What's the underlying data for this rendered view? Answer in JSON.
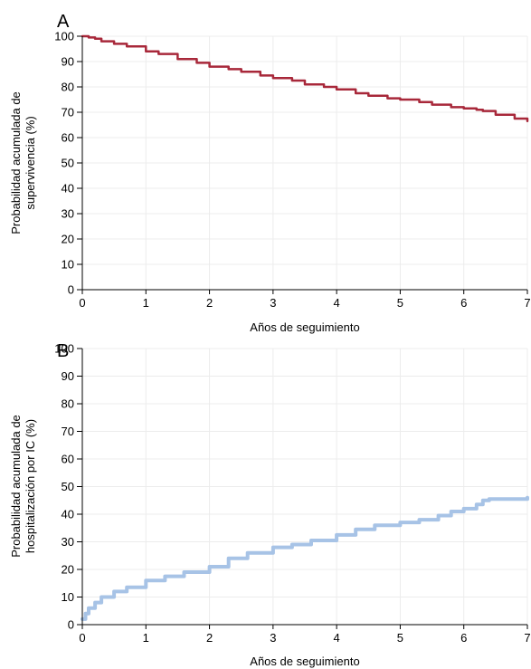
{
  "chart_data": [
    {
      "type": "line",
      "panel_label": "A",
      "xlabel": "Años de seguimiento",
      "ylabel_lines": [
        "Probabilidad acumulada de",
        "supervivencia (%)"
      ],
      "xlim": [
        0,
        7
      ],
      "ylim": [
        0,
        100
      ],
      "xticks": [
        0,
        1,
        2,
        3,
        4,
        5,
        6,
        7
      ],
      "yticks": [
        0,
        10,
        20,
        30,
        40,
        50,
        60,
        70,
        80,
        90,
        100
      ],
      "grid": true,
      "series": [
        {
          "color": "#a8283a",
          "x": [
            0,
            0.1,
            0.2,
            0.3,
            0.5,
            0.7,
            1.0,
            1.2,
            1.5,
            1.8,
            2.0,
            2.3,
            2.5,
            2.8,
            3.0,
            3.3,
            3.5,
            3.8,
            4.0,
            4.3,
            4.5,
            4.8,
            5.0,
            5.3,
            5.5,
            5.8,
            6.0,
            6.2,
            6.3,
            6.5,
            6.8,
            7.0
          ],
          "y": [
            100,
            99.5,
            99,
            98,
            97,
            96,
            94,
            93,
            91,
            89.5,
            88,
            87,
            86,
            84.5,
            83.5,
            82.5,
            81,
            80,
            79,
            77.5,
            76.5,
            75.5,
            75,
            74,
            73,
            72,
            71.5,
            71,
            70.5,
            69,
            67.5,
            66.5
          ]
        }
      ]
    },
    {
      "type": "line",
      "panel_label": "B",
      "xlabel": "Años de seguimiento",
      "ylabel_lines": [
        "Probabilidad acumulada de",
        "hospitalización por IC (%)"
      ],
      "xlim": [
        0,
        7
      ],
      "ylim": [
        0,
        100
      ],
      "xticks": [
        0,
        1,
        2,
        3,
        4,
        5,
        6,
        7
      ],
      "yticks": [
        0,
        10,
        20,
        30,
        40,
        50,
        60,
        70,
        80,
        90,
        100
      ],
      "grid": true,
      "series": [
        {
          "color": "#a7c3e6",
          "x": [
            0,
            0.05,
            0.1,
            0.2,
            0.3,
            0.5,
            0.7,
            1.0,
            1.3,
            1.6,
            2.0,
            2.3,
            2.6,
            3.0,
            3.3,
            3.6,
            4.0,
            4.3,
            4.6,
            5.0,
            5.3,
            5.6,
            5.8,
            6.0,
            6.2,
            6.3,
            6.4,
            6.6,
            6.8,
            7.0
          ],
          "y": [
            2,
            4,
            6,
            8,
            10,
            12,
            13.5,
            16,
            17.5,
            19,
            21,
            24,
            26,
            28,
            29,
            30.5,
            32.5,
            34.5,
            36,
            37,
            38,
            39.5,
            41,
            42,
            43.5,
            45,
            45.5,
            45.5,
            45.5,
            46
          ]
        }
      ]
    }
  ]
}
